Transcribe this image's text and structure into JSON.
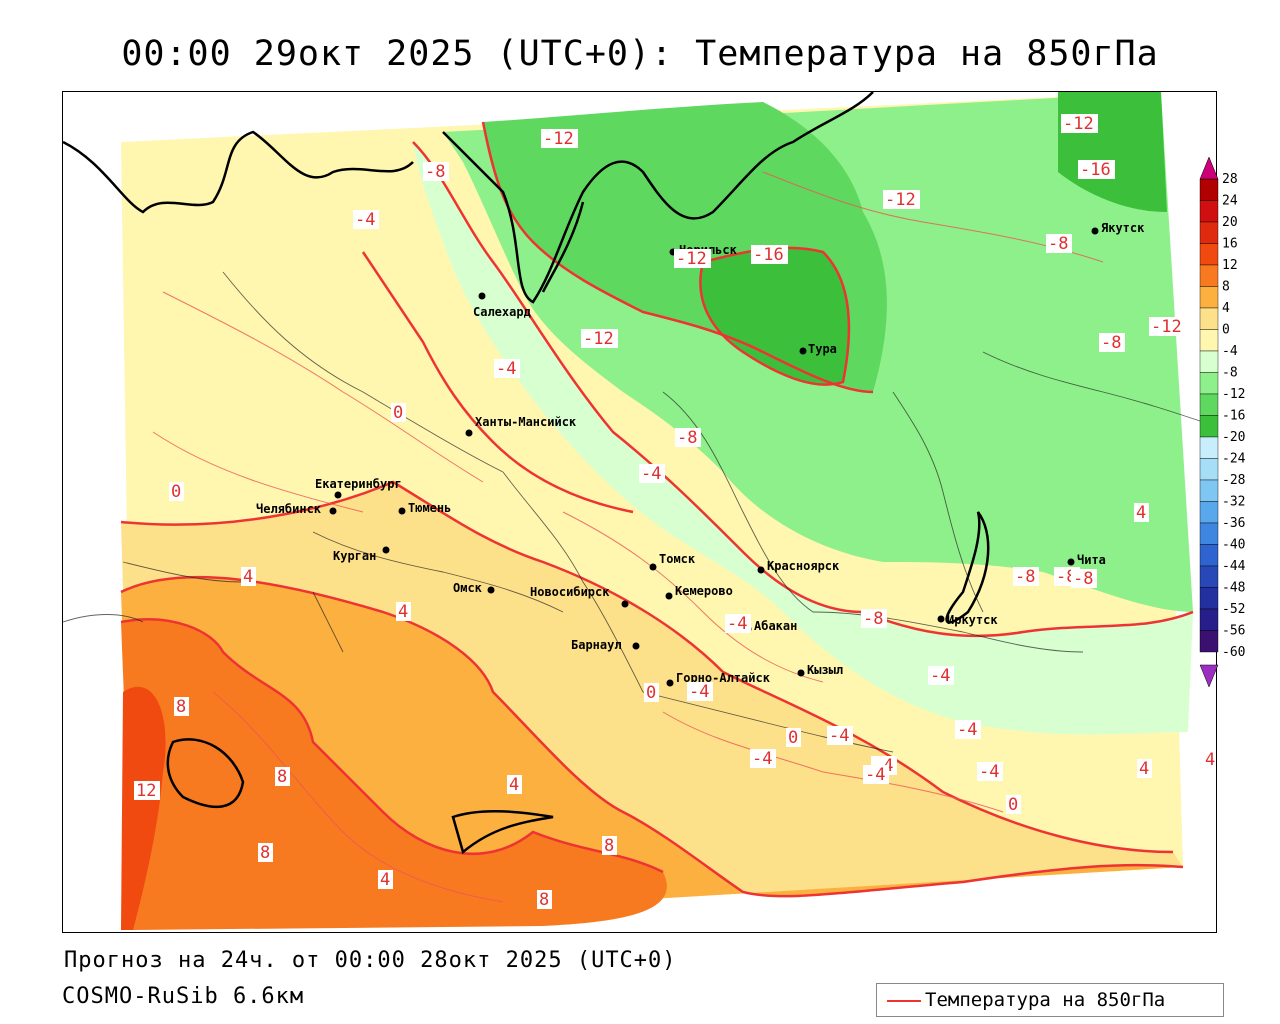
{
  "title": "00:00 29окт 2025 (UTC+0): Температура на 850гПа",
  "forecast_line": "Прогноз на 24ч. от 00:00 28окт 2025 (UTC+0)",
  "model_line": "COSMO-RuSib 6.6км",
  "legend": {
    "label": "Температура на 850гПа",
    "color": "#ee3333"
  },
  "colorbar": {
    "ticks": [
      "28",
      "24",
      "20",
      "16",
      "12",
      "8",
      "4",
      "0",
      "-4",
      "-8",
      "-12",
      "-16",
      "-20",
      "-24",
      "-28",
      "-32",
      "-36",
      "-40",
      "-44",
      "-48",
      "-52",
      "-56",
      "-60"
    ],
    "colors": {
      "24_28": "#b00000",
      "20_24": "#d01010",
      "16_20": "#e02a10",
      "12_16": "#f04a10",
      "8_12": "#f77a20",
      "4_8": "#fbb040",
      "0_4": "#fde08a",
      "-4_0": "#fff6b0",
      "-8_-4": "#d8ffd0",
      "-12_-8": "#8ef08a",
      "-16_-12": "#5fd85f",
      "-20_-16": "#3cc03c",
      "-24_-20": "#c8eefc",
      "-28_-24": "#a6def8",
      "-32_-28": "#80c6f2",
      "-36_-32": "#5aa8ec",
      "-40_-36": "#3e86e0",
      "-44_-40": "#2f64d0",
      "-48_-44": "#2848b8",
      "-52_-48": "#2230a0",
      "-56_-52": "#281e8a",
      "-60_-56": "#3a1070"
    }
  },
  "cities": [
    {
      "name": "Салехард"
    },
    {
      "name": "Норильск"
    },
    {
      "name": "Тура"
    },
    {
      "name": "Якутск"
    },
    {
      "name": "Ханты-Мансийск"
    },
    {
      "name": "Екатеринбург"
    },
    {
      "name": "Тюмень"
    },
    {
      "name": "Челябинск"
    },
    {
      "name": "Курган"
    },
    {
      "name": "Омск"
    },
    {
      "name": "Новосибирск"
    },
    {
      "name": "Томск"
    },
    {
      "name": "Кемерово"
    },
    {
      "name": "Красноярск"
    },
    {
      "name": "Барнаул"
    },
    {
      "name": "Абакан"
    },
    {
      "name": "Горно-Алтайск"
    },
    {
      "name": "Кызыл"
    },
    {
      "name": "Иркутск"
    },
    {
      "name": "Чита"
    }
  ],
  "contour_labels": [
    "-12",
    "-8",
    "-4",
    "-12",
    "-16",
    "-12",
    "-16",
    "-8",
    "-12",
    "-12",
    "-4",
    "-12",
    "0",
    "-8",
    "-4",
    "0",
    "4",
    "4",
    "8",
    "12",
    "8",
    "8",
    "4",
    "4",
    "8",
    "8",
    "-4",
    "-4",
    "0",
    "-4",
    "-4",
    "-4",
    "-4",
    "-4",
    "0",
    "4",
    "4",
    "4",
    "-8",
    "-8",
    "-8",
    "-8",
    "-8",
    "-4",
    "-4",
    "0"
  ]
}
